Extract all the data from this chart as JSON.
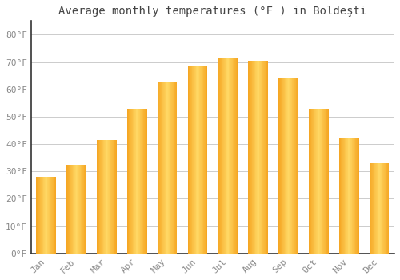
{
  "title": "Average monthly temperatures (°F ) in Boldeşti",
  "months": [
    "Jan",
    "Feb",
    "Mar",
    "Apr",
    "May",
    "Jun",
    "Jul",
    "Aug",
    "Sep",
    "Oct",
    "Nov",
    "Dec"
  ],
  "values": [
    28,
    32.5,
    41.5,
    53,
    62.5,
    68.5,
    71.5,
    70.5,
    64,
    53,
    42,
    33
  ],
  "bar_color_edge": "#F5A623",
  "bar_color_center": "#FFD966",
  "background_color": "#FFFFFF",
  "grid_color": "#CCCCCC",
  "yticks": [
    0,
    10,
    20,
    30,
    40,
    50,
    60,
    70,
    80
  ],
  "ylim": [
    0,
    85
  ],
  "title_fontsize": 10,
  "tick_fontsize": 8,
  "tick_color": "#888888",
  "title_color": "#444444",
  "spine_color": "#333333",
  "bar_width": 0.65
}
